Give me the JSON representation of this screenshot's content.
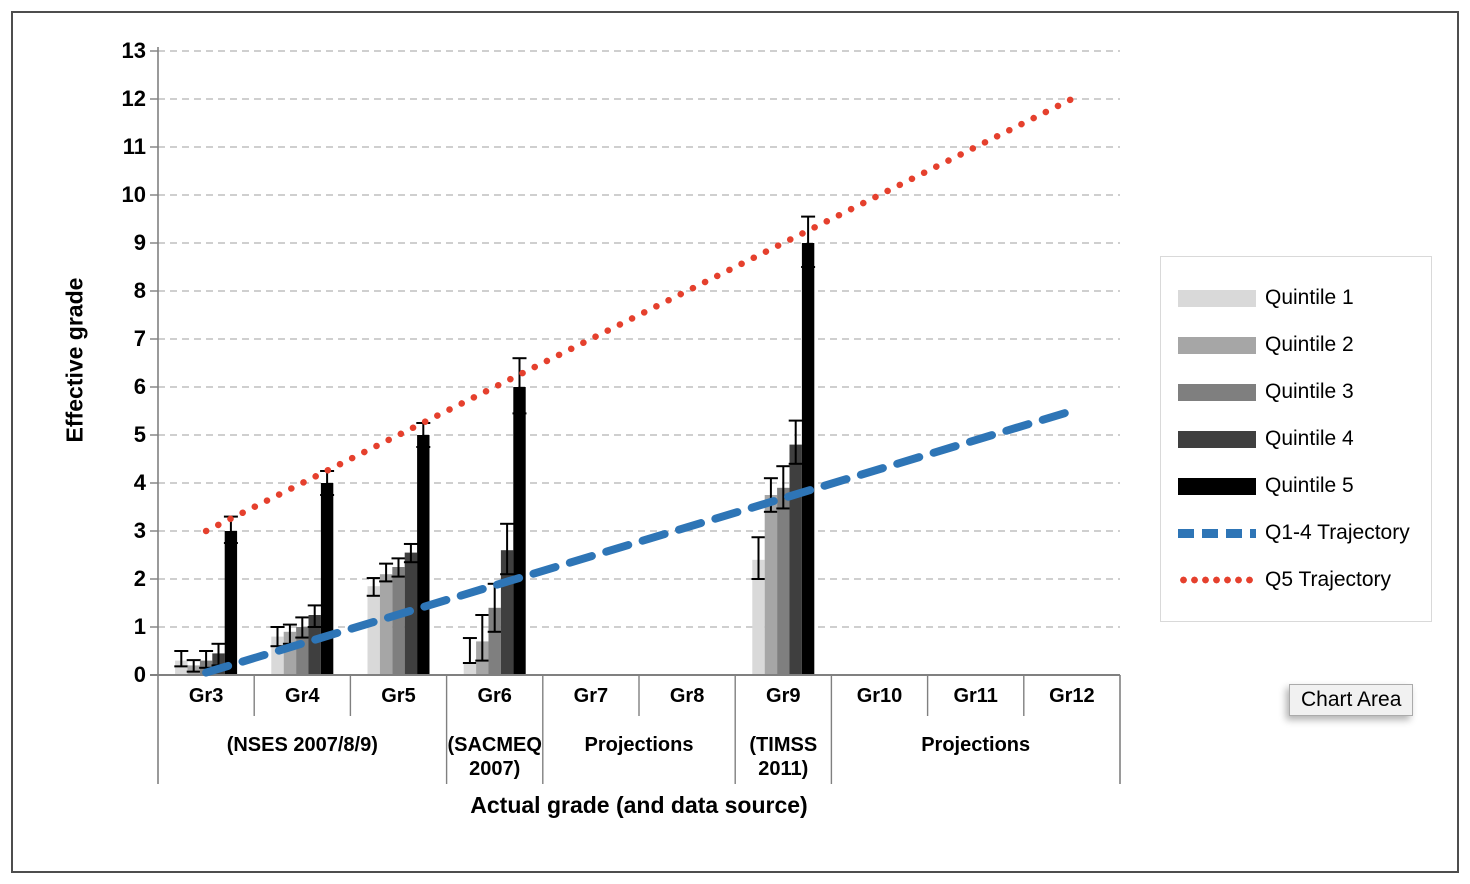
{
  "chart_data": {
    "type": "bar",
    "title": "",
    "ylabel": "Effective grade",
    "xlabel": "Actual grade (and data source)",
    "ylim": [
      0,
      13
    ],
    "yticks": [
      0,
      1,
      2,
      3,
      4,
      5,
      6,
      7,
      8,
      9,
      10,
      11,
      12,
      13
    ],
    "grid": "horizontal-dashed",
    "legend_position": "right",
    "categories": [
      "Gr3",
      "Gr4",
      "Gr5",
      "Gr6",
      "Gr7",
      "Gr8",
      "Gr9",
      "Gr10",
      "Gr11",
      "Gr12"
    ],
    "source_groups": [
      {
        "label": "(NSES 2007/8/9)",
        "start": 0,
        "end": 2
      },
      {
        "label": "(SACMEQ 2007)",
        "start": 3,
        "end": 3
      },
      {
        "label": "Projections",
        "start": 4,
        "end": 5
      },
      {
        "label": "(TIMSS 2011)",
        "start": 6,
        "end": 6
      },
      {
        "label": "Projections",
        "start": 7,
        "end": 9
      }
    ],
    "series": [
      {
        "name": "Quintile 1",
        "color": "#D9D9D9",
        "values": [
          0.3,
          0.8,
          1.85,
          0.27,
          null,
          null,
          2.4,
          null,
          null,
          null
        ],
        "err_up": [
          0.2,
          0.2,
          0.17,
          0.5,
          null,
          null,
          0.47,
          null,
          null,
          null
        ],
        "err_down": [
          0.12,
          0.2,
          0.2,
          0.02,
          null,
          null,
          0.4,
          null,
          null,
          null
        ]
      },
      {
        "name": "Quintile 2",
        "color": "#A6A6A6",
        "values": [
          0.2,
          0.9,
          2.1,
          0.7,
          null,
          null,
          3.75,
          null,
          null,
          null
        ],
        "err_up": [
          0.11,
          0.15,
          0.22,
          0.55,
          null,
          null,
          0.35,
          null,
          null,
          null
        ],
        "err_down": [
          0.13,
          0.25,
          0.15,
          0.4,
          null,
          null,
          0.35,
          null,
          null,
          null
        ]
      },
      {
        "name": "Quintile 3",
        "color": "#7F7F7F",
        "values": [
          0.3,
          1.0,
          2.25,
          1.4,
          null,
          null,
          3.9,
          null,
          null,
          null
        ],
        "err_up": [
          0.2,
          0.2,
          0.18,
          0.5,
          null,
          null,
          0.45,
          null,
          null,
          null
        ],
        "err_down": [
          0.15,
          0.22,
          0.2,
          0.5,
          null,
          null,
          0.43,
          null,
          null,
          null
        ]
      },
      {
        "name": "Quintile 4",
        "color": "#3F3F3F",
        "values": [
          0.45,
          1.25,
          2.55,
          2.6,
          null,
          null,
          4.8,
          null,
          null,
          null
        ],
        "err_up": [
          0.2,
          0.2,
          0.18,
          0.55,
          null,
          null,
          0.5,
          null,
          null,
          null
        ],
        "err_down": [
          0.25,
          0.25,
          0.2,
          0.5,
          null,
          null,
          0.4,
          null,
          null,
          null
        ]
      },
      {
        "name": "Quintile 5",
        "color": "#000000",
        "values": [
          3.0,
          4.0,
          5.0,
          6.0,
          null,
          null,
          9.0,
          null,
          null,
          null
        ],
        "err_up": [
          0.3,
          0.25,
          0.25,
          0.6,
          null,
          null,
          0.55,
          null,
          null,
          null
        ],
        "err_down": [
          0.25,
          0.25,
          0.25,
          0.55,
          null,
          null,
          0.5,
          null,
          null,
          null
        ]
      }
    ],
    "lines": [
      {
        "name": "Q1-4 Trajectory",
        "style": "dashed",
        "color": "#2E75B6",
        "from": {
          "category": "Gr3",
          "value": 0.05
        },
        "to": {
          "category": "Gr12",
          "value": 5.5
        }
      },
      {
        "name": "Q5 Trajectory",
        "style": "dotted",
        "color": "#E5402D",
        "from": {
          "category": "Gr3",
          "value": 3.0
        },
        "to": {
          "category": "Gr12",
          "value": 12.0
        }
      }
    ]
  },
  "tooltip": {
    "label": "Chart Area"
  },
  "colors": {
    "gridline": "#BFBFBF",
    "axis": "#808080",
    "error_bar": "#000000",
    "frame": "#4D4D4D"
  }
}
